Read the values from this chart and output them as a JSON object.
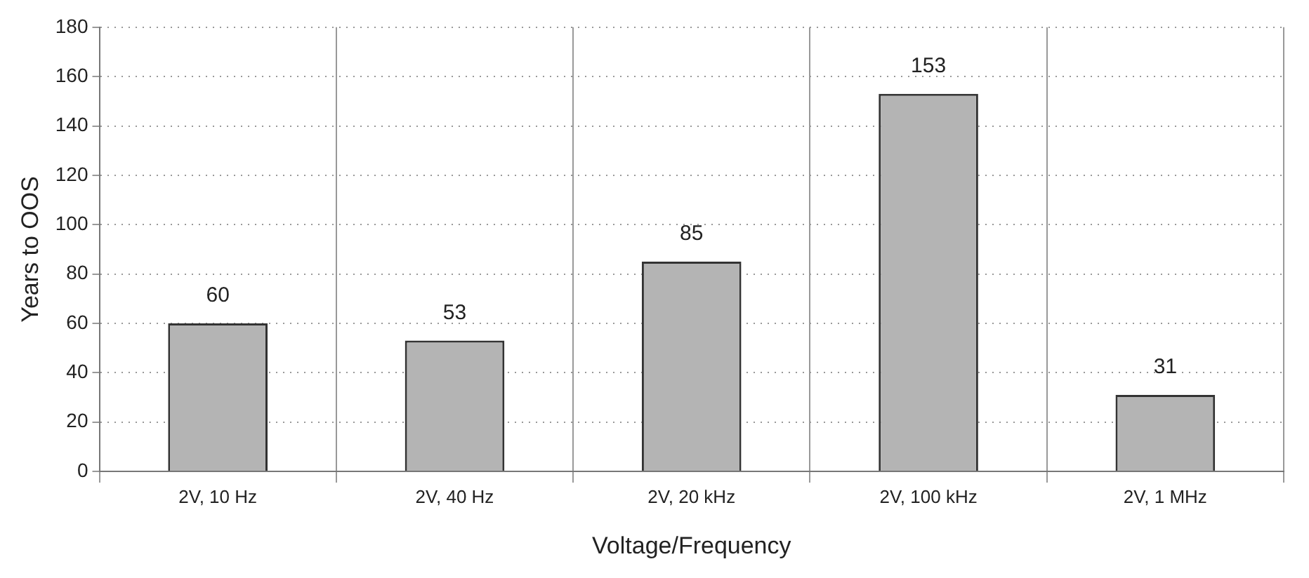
{
  "chart_data": {
    "type": "bar",
    "xlabel": "Voltage/Frequency",
    "ylabel": "Years to OOS",
    "categories": [
      "2V, 10 Hz",
      "2V, 40 Hz",
      "2V, 20 kHz",
      "2V, 100 kHz",
      "2V, 1 MHz"
    ],
    "values": [
      60,
      53,
      85,
      153,
      31
    ],
    "color": "#b4b4b4",
    "ylim": [
      0,
      180
    ],
    "yticks": [
      0,
      20,
      40,
      60,
      80,
      100,
      120,
      140,
      160,
      180
    ],
    "grid": true,
    "data_labels": true,
    "legend": false
  }
}
